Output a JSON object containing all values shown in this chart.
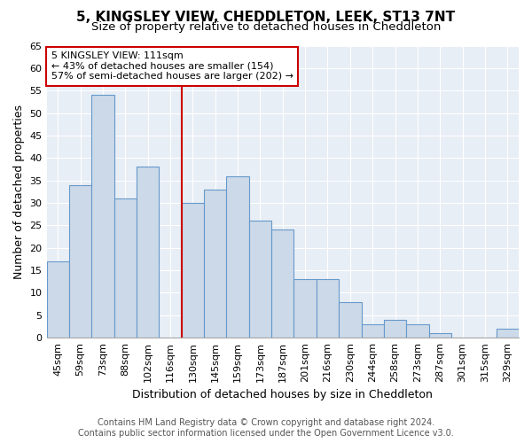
{
  "title": "5, KINGSLEY VIEW, CHEDDLETON, LEEK, ST13 7NT",
  "subtitle": "Size of property relative to detached houses in Cheddleton",
  "xlabel": "Distribution of detached houses by size in Cheddleton",
  "ylabel": "Number of detached properties",
  "categories": [
    "45sqm",
    "59sqm",
    "73sqm",
    "88sqm",
    "102sqm",
    "116sqm",
    "130sqm",
    "145sqm",
    "159sqm",
    "173sqm",
    "187sqm",
    "201sqm",
    "216sqm",
    "230sqm",
    "244sqm",
    "258sqm",
    "273sqm",
    "287sqm",
    "301sqm",
    "315sqm",
    "329sqm"
  ],
  "values": [
    17,
    34,
    54,
    31,
    38,
    0,
    30,
    33,
    36,
    26,
    24,
    13,
    13,
    8,
    3,
    4,
    3,
    1,
    0,
    0,
    2
  ],
  "bar_color": "#ccd9e8",
  "bar_edge_color": "#6699cc",
  "vline_color": "#cc0000",
  "vline_x": 5.5,
  "annotation_text": "5 KINGSLEY VIEW: 111sqm\n← 43% of detached houses are smaller (154)\n57% of semi-detached houses are larger (202) →",
  "annotation_box_color": "#ffffff",
  "annotation_box_edge": "#cc0000",
  "ylim": [
    0,
    65
  ],
  "yticks": [
    0,
    5,
    10,
    15,
    20,
    25,
    30,
    35,
    40,
    45,
    50,
    55,
    60,
    65
  ],
  "fig_bg_color": "#ffffff",
  "plot_bg_color": "#e8eef5",
  "grid_color": "#ffffff",
  "footer1": "Contains HM Land Registry data © Crown copyright and database right 2024.",
  "footer2": "Contains public sector information licensed under the Open Government Licence v3.0.",
  "title_fontsize": 11,
  "subtitle_fontsize": 9.5,
  "axis_label_fontsize": 9,
  "tick_fontsize": 8,
  "annotation_fontsize": 8,
  "footer_fontsize": 7
}
